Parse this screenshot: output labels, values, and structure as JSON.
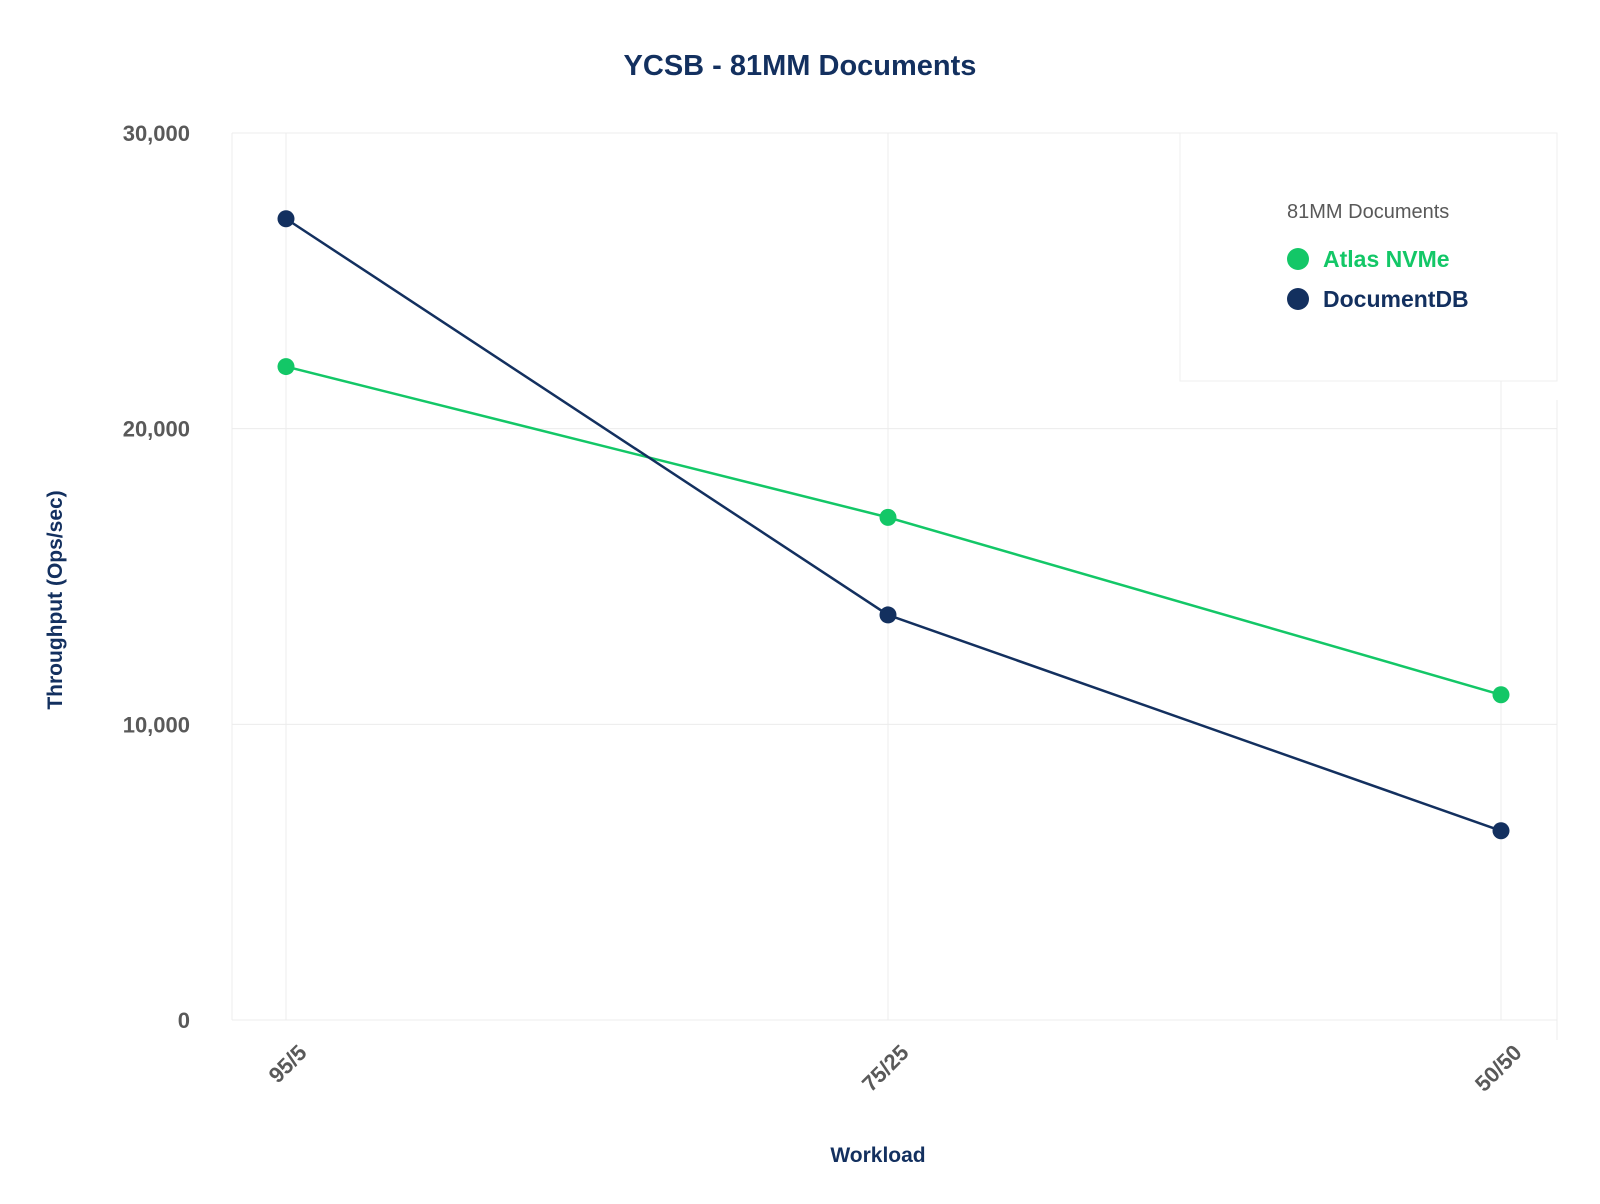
{
  "chart_data": {
    "type": "line",
    "title": "YCSB - 81MM Documents",
    "xlabel": "Workload",
    "ylabel": "Throughput (Ops/sec)",
    "categories": [
      "95/5",
      "75/25",
      "50/50"
    ],
    "ylim": [
      0,
      30000
    ],
    "yticks": [
      0,
      10000,
      20000,
      30000
    ],
    "ytick_labels": [
      "0",
      "10,000",
      "20,000",
      "30,000"
    ],
    "grid": true,
    "legend": {
      "title": "81MM Documents",
      "placement": "top-right"
    },
    "series": [
      {
        "name": "Atlas NVMe",
        "color": "#13c767",
        "values": [
          22100,
          17000,
          11000
        ]
      },
      {
        "name": "DocumentDB",
        "color": "#13305f",
        "values": [
          27100,
          13700,
          6400
        ]
      }
    ]
  }
}
